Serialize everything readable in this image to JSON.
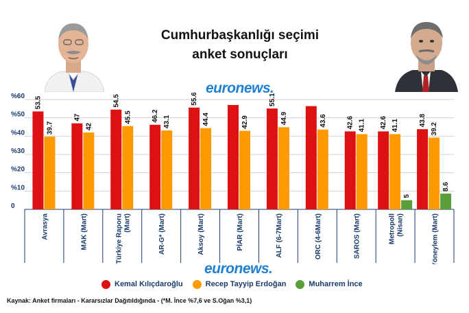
{
  "title_line1": "Cumhurbaşkanlığı seçimi",
  "title_line2": "anket sonuçları",
  "brand_text": "euronews",
  "brand_dot": ".",
  "source_text": "Kaynak: Anket firmaları - Kararsızlar Dağıtıldığında - (*M. İnce %7,6 ve S.Oğan %3,1)",
  "colors": {
    "kilicdaroglu": "#dd1111",
    "erdogan": "#ff9900",
    "ince": "#5a9e3a",
    "axis": "#1a3a6a",
    "grid": "#c9d3e0"
  },
  "chart_data": {
    "type": "bar",
    "categories": [
      "Avrasya",
      "MAK (Mart)",
      "Türkiye Raporu (Mart)",
      "AR-G* (Mart)",
      "Aksoy (Mart)",
      "PİAR (Mart)",
      "ALF (6-7Mart)",
      "ORC (4-6Mart)",
      "SAROS (Mart)",
      "Metropoll (Nisan)",
      "Yöneylem (Mart)"
    ],
    "category_lines": [
      [
        "Avrasya"
      ],
      [
        "MAK (Mart)"
      ],
      [
        "Türkiye Raporu",
        "(Mart)"
      ],
      [
        "AR-G* (Mart)"
      ],
      [
        "Aksoy (Mart)"
      ],
      [
        "PİAR (Mart)"
      ],
      [
        "ALF (6-7Mart)"
      ],
      [
        "ORC (4-6Mart)"
      ],
      [
        "SAROS (Mart)"
      ],
      [
        "Metropoll",
        "(Nisan)"
      ],
      [
        "Yöneylem (Mart)"
      ]
    ],
    "series": [
      {
        "name": "Kemal Kılıçdaroğlu",
        "color_key": "kilicdaroglu",
        "values": [
          53.5,
          47,
          54.5,
          46.2,
          55.6,
          57,
          55.1,
          56.4,
          42.6,
          42.6,
          43.8
        ],
        "labels": [
          "53.5",
          "47",
          "54.5",
          "46.2",
          "55.6",
          "",
          "55.1",
          "",
          "42.6",
          "42.6",
          "43.8"
        ]
      },
      {
        "name": "Recep Tayyip Erdoğan",
        "color_key": "erdogan",
        "values": [
          39.7,
          42,
          45.5,
          43.1,
          44.4,
          42.9,
          44.9,
          43.6,
          41.1,
          41.1,
          39.2
        ],
        "labels": [
          "39.7",
          "42",
          "45.5",
          "43.1",
          "44.4",
          "42.9",
          "44.9",
          "43.6",
          "41.1",
          "41.1",
          "39.2"
        ]
      },
      {
        "name": "Muharrem İnce",
        "color_key": "ince",
        "values": [
          null,
          null,
          null,
          null,
          null,
          null,
          null,
          null,
          null,
          5,
          8.6
        ],
        "labels": [
          "",
          "",
          "",
          "",
          "",
          "",
          "",
          "",
          "",
          "5",
          "8.6"
        ]
      }
    ],
    "y_ticks": [
      "0",
      "%10",
      "%20",
      "%30",
      "%40",
      "%50",
      "%60"
    ],
    "ylim": [
      0,
      60
    ],
    "grid": true,
    "legend_position": "bottom"
  }
}
